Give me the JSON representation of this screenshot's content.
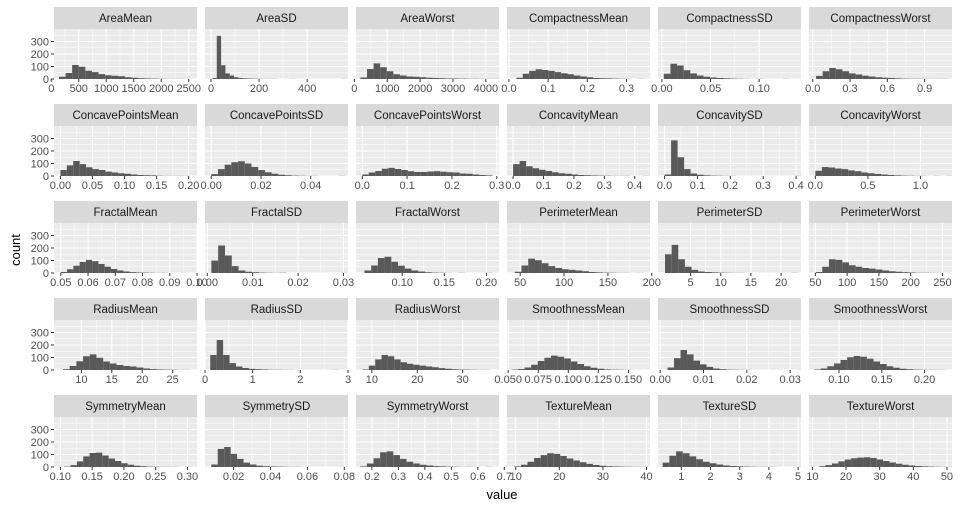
{
  "chart_data": {
    "type": "bar",
    "subtype": "faceted-histogram",
    "facet_columns": 6,
    "grid": true,
    "xlabel": "value",
    "ylabel": "count",
    "ylim": [
      0,
      400
    ],
    "y_ticks": [
      0,
      100,
      200,
      300
    ],
    "colors": {
      "panel_bg": "#ebebeb",
      "strip_bg": "#d9d9d9",
      "bar": "#595959",
      "grid": "#ffffff"
    },
    "panels": [
      {
        "title": "AreaMean",
        "x_ticks": [
          0,
          500,
          1000,
          1500,
          2000,
          2500
        ],
        "xlim": [
          50,
          2650
        ],
        "bin_start": 140,
        "bin_width": 120,
        "counts": [
          18,
          48,
          112,
          98,
          66,
          55,
          39,
          30,
          26,
          22,
          14,
          10,
          6,
          4,
          3,
          2,
          1,
          1,
          1,
          0,
          0,
          0,
          0,
          0,
          0,
          2,
          0,
          0,
          1
        ]
      },
      {
        "title": "AreaSD",
        "x_ticks": [
          0,
          200,
          400
        ],
        "xlim": [
          -25,
          570
        ],
        "bin_start": 6,
        "bin_width": 18,
        "counts": [
          8,
          345,
          110,
          45,
          28,
          14,
          8,
          5,
          4,
          3,
          2,
          1,
          1,
          1,
          1,
          0,
          0,
          0,
          1,
          0,
          0,
          0,
          0,
          0,
          0,
          0,
          0,
          0,
          0,
          0,
          1
        ]
      },
      {
        "title": "AreaWorst",
        "x_ticks": [
          0,
          1000,
          2000,
          3000,
          4000
        ],
        "xlim": [
          50,
          4400
        ],
        "bin_start": 185,
        "bin_width": 200,
        "counts": [
          12,
          80,
          125,
          94,
          62,
          38,
          28,
          20,
          18,
          14,
          10,
          8,
          6,
          4,
          4,
          3,
          2,
          2,
          1,
          1,
          1
        ]
      },
      {
        "title": "CompactnessMean",
        "x_ticks": [
          0.0,
          0.1,
          0.2,
          0.3
        ],
        "xlim": [
          -0.005,
          0.36
        ],
        "bin_start": 0.019,
        "bin_width": 0.0163,
        "counts": [
          10,
          42,
          65,
          78,
          72,
          65,
          55,
          46,
          38,
          28,
          20,
          14,
          8,
          6,
          5,
          3,
          2,
          1,
          0,
          1
        ]
      },
      {
        "title": "CompactnessSD",
        "x_ticks": [
          0.0,
          0.05,
          0.1
        ],
        "xlim": [
          -0.004,
          0.143
        ],
        "bin_start": 0.002,
        "bin_width": 0.0068,
        "counts": [
          42,
          122,
          108,
          70,
          45,
          28,
          18,
          12,
          8,
          5,
          3,
          2,
          1,
          0,
          1,
          0,
          0,
          0,
          1
        ]
      },
      {
        "title": "CompactnessWorst",
        "x_ticks": [
          0.0,
          0.3,
          0.6,
          0.9
        ],
        "xlim": [
          -0.03,
          1.12
        ],
        "bin_start": 0.027,
        "bin_width": 0.053,
        "counts": [
          25,
          62,
          88,
          78,
          62,
          45,
          36,
          26,
          20,
          14,
          10,
          8,
          5,
          3,
          2,
          2,
          1,
          1,
          1,
          1
        ]
      },
      {
        "title": "ConcavePointsMean",
        "x_ticks": [
          0.0,
          0.05,
          0.1,
          0.15,
          0.2
        ],
        "xlim": [
          -0.01,
          0.213
        ],
        "bin_start": 0.0,
        "bin_width": 0.01,
        "counts": [
          48,
          85,
          120,
          95,
          70,
          55,
          48,
          35,
          28,
          22,
          18,
          12,
          8,
          6,
          5,
          2,
          1,
          1,
          1,
          1
        ]
      },
      {
        "title": "ConcavePointsSD",
        "x_ticks": [
          0.0,
          0.02,
          0.04
        ],
        "xlim": [
          -0.0025,
          0.055
        ],
        "bin_start": 0.0,
        "bin_width": 0.0027,
        "counts": [
          15,
          55,
          90,
          110,
          118,
          100,
          72,
          48,
          30,
          18,
          10,
          6,
          3,
          2,
          1,
          1,
          0,
          0,
          0,
          1
        ]
      },
      {
        "title": "ConcavePointsWorst",
        "x_ticks": [
          0.0,
          0.1,
          0.2,
          0.3
        ],
        "xlim": [
          -0.014,
          0.305
        ],
        "bin_start": 0.0,
        "bin_width": 0.0145,
        "counts": [
          12,
          28,
          40,
          58,
          65,
          56,
          48,
          38,
          32,
          32,
          36,
          38,
          34,
          30,
          28,
          20,
          18,
          12,
          8,
          5
        ]
      },
      {
        "title": "ConcavityMean",
        "x_ticks": [
          0.0,
          0.1,
          0.2,
          0.3,
          0.4
        ],
        "xlim": [
          -0.02,
          0.45
        ],
        "bin_start": 0.0,
        "bin_width": 0.0214,
        "counts": [
          95,
          120,
          78,
          62,
          50,
          40,
          30,
          22,
          18,
          12,
          8,
          6,
          4,
          3,
          2,
          1,
          1,
          1,
          0,
          0,
          1
        ]
      },
      {
        "title": "ConcavitySD",
        "x_ticks": [
          0.0,
          0.1,
          0.2,
          0.3,
          0.4
        ],
        "xlim": [
          -0.02,
          0.415
        ],
        "bin_start": 0.0,
        "bin_width": 0.0198,
        "counts": [
          12,
          285,
          150,
          55,
          20,
          10,
          5,
          3,
          2,
          1,
          1,
          0,
          0,
          0,
          0,
          0,
          0,
          0,
          0,
          0,
          1
        ]
      },
      {
        "title": "ConcavityWorst",
        "x_ticks": [
          0.0,
          0.5,
          1.0
        ],
        "xlim": [
          -0.06,
          1.3
        ],
        "bin_start": 0.0,
        "bin_width": 0.0626,
        "counts": [
          42,
          72,
          68,
          60,
          55,
          45,
          38,
          28,
          22,
          16,
          12,
          8,
          5,
          3,
          2,
          1,
          1,
          0,
          1,
          0,
          1
        ]
      },
      {
        "title": "FractalMean",
        "x_ticks": [
          0.05,
          0.06,
          0.07,
          0.08,
          0.09,
          0.1
        ],
        "xlim": [
          0.0475,
          0.1
        ],
        "bin_start": 0.05,
        "bin_width": 0.0023,
        "counts": [
          8,
          30,
          58,
          88,
          105,
          95,
          72,
          50,
          32,
          20,
          12,
          7,
          4,
          3,
          2,
          1,
          1,
          0,
          0,
          1
        ]
      },
      {
        "title": "FractalSD",
        "x_ticks": [
          0.0,
          0.01,
          0.02,
          0.03
        ],
        "xlim": [
          -0.0005,
          0.031
        ],
        "bin_start": 0.0009,
        "bin_width": 0.0015,
        "counts": [
          100,
          220,
          140,
          55,
          20,
          10,
          6,
          3,
          2,
          1,
          2,
          0,
          0,
          0,
          0,
          0,
          0,
          0,
          0,
          1
        ]
      },
      {
        "title": "FractalWorst",
        "x_ticks": [
          0.1,
          0.15,
          0.2
        ],
        "xlim": [
          0.045,
          0.215
        ],
        "bin_start": 0.055,
        "bin_width": 0.008,
        "counts": [
          20,
          60,
          120,
          130,
          90,
          58,
          35,
          20,
          12,
          6,
          3,
          2,
          1,
          0,
          1,
          0,
          0,
          0,
          1
        ]
      },
      {
        "title": "PerimeterMean",
        "x_ticks": [
          50,
          100,
          150,
          200
        ],
        "xlim": [
          35,
          198
        ],
        "bin_start": 43.8,
        "bin_width": 7.7,
        "counts": [
          10,
          60,
          115,
          102,
          78,
          55,
          40,
          30,
          25,
          20,
          14,
          8,
          5,
          3,
          2,
          1,
          1,
          0,
          1
        ]
      },
      {
        "title": "PerimeterSD",
        "x_ticks": [
          5,
          10,
          15,
          20
        ],
        "xlim": [
          -0.4,
          23.3
        ],
        "bin_start": 0.76,
        "bin_width": 1.1,
        "counts": [
          150,
          225,
          110,
          50,
          25,
          12,
          8,
          5,
          3,
          2,
          1,
          1,
          0,
          0,
          0,
          0,
          0,
          0,
          0,
          1
        ]
      },
      {
        "title": "PerimeterWorst",
        "x_ticks": [
          50,
          100,
          150,
          200,
          250
        ],
        "xlim": [
          40,
          265
        ],
        "bin_start": 50.4,
        "bin_width": 10.5,
        "counts": [
          8,
          50,
          110,
          105,
          85,
          62,
          50,
          40,
          35,
          28,
          20,
          14,
          10,
          6,
          4,
          2,
          2,
          1,
          1
        ]
      },
      {
        "title": "RadiusMean",
        "x_ticks": [
          10,
          15,
          20,
          25
        ],
        "xlim": [
          5.5,
          29
        ],
        "bin_start": 6.98,
        "bin_width": 1.1,
        "counts": [
          6,
          32,
          70,
          110,
          125,
          98,
          68,
          52,
          40,
          32,
          28,
          20,
          12,
          7,
          4,
          3,
          2,
          1,
          1
        ]
      },
      {
        "title": "RadiusSD",
        "x_ticks": [
          0,
          1,
          2,
          3
        ],
        "xlim": [
          0.0,
          3.0
        ],
        "bin_start": 0.11,
        "bin_width": 0.135,
        "counts": [
          120,
          240,
          120,
          55,
          28,
          16,
          9,
          6,
          4,
          2,
          2,
          1,
          1,
          0,
          0,
          0,
          0,
          0,
          0,
          1
        ]
      },
      {
        "title": "RadiusWorst",
        "x_ticks": [
          10,
          20,
          30
        ],
        "xlim": [
          6.5,
          38
        ],
        "bin_start": 7.93,
        "bin_width": 1.4,
        "counts": [
          4,
          35,
          85,
          120,
          110,
          85,
          62,
          50,
          42,
          35,
          28,
          22,
          15,
          10,
          6,
          4,
          3,
          2,
          1,
          1
        ]
      },
      {
        "title": "SmoothnessMean",
        "x_ticks": [
          0.05,
          0.075,
          0.1,
          0.125,
          0.15
        ],
        "xlim": [
          0.049,
          0.168
        ],
        "bin_start": 0.0526,
        "bin_width": 0.0055,
        "counts": [
          3,
          8,
          20,
          42,
          72,
          98,
          115,
          106,
          92,
          68,
          48,
          30,
          18,
          10,
          5,
          3,
          2,
          1
        ]
      },
      {
        "title": "SmoothnessSD",
        "x_ticks": [
          0.0,
          0.01,
          0.02,
          0.03
        ],
        "xlim": [
          -0.0005,
          0.0325
        ],
        "bin_start": 0.0017,
        "bin_width": 0.0015,
        "counts": [
          20,
          95,
          160,
          125,
          75,
          45,
          25,
          12,
          6,
          3,
          2,
          1,
          1,
          0,
          0,
          0,
          0,
          0,
          0,
          0,
          1
        ]
      },
      {
        "title": "SmoothnessWorst",
        "x_ticks": [
          0.1,
          0.15,
          0.2
        ],
        "xlim": [
          0.065,
          0.232
        ],
        "bin_start": 0.071,
        "bin_width": 0.0077,
        "counts": [
          4,
          12,
          30,
          52,
          80,
          102,
          112,
          106,
          90,
          68,
          48,
          30,
          18,
          10,
          6,
          3,
          2,
          1,
          1,
          1
        ]
      },
      {
        "title": "SymmetryMean",
        "x_ticks": [
          0.1,
          0.15,
          0.2,
          0.25,
          0.3
        ],
        "xlim": [
          0.09,
          0.315
        ],
        "bin_start": 0.106,
        "bin_width": 0.01,
        "counts": [
          3,
          15,
          45,
          85,
          112,
          115,
          92,
          68,
          48,
          30,
          18,
          10,
          6,
          3,
          2,
          1,
          1,
          1,
          0,
          1
        ]
      },
      {
        "title": "SymmetrySD",
        "x_ticks": [
          0.02,
          0.04,
          0.06,
          0.08
        ],
        "xlim": [
          0.0045,
          0.082
        ],
        "bin_start": 0.0079,
        "bin_width": 0.0035,
        "counts": [
          20,
          145,
          160,
          105,
          65,
          35,
          20,
          10,
          6,
          4,
          3,
          2,
          1,
          1,
          0,
          0,
          0,
          0,
          0,
          0,
          1
        ]
      },
      {
        "title": "SymmetryWorst",
        "x_ticks": [
          0.2,
          0.3,
          0.4,
          0.5,
          0.6,
          0.7
        ],
        "xlim": [
          0.14,
          0.68
        ],
        "bin_start": 0.156,
        "bin_width": 0.025,
        "counts": [
          5,
          28,
          70,
          118,
          125,
          95,
          65,
          42,
          28,
          18,
          12,
          7,
          5,
          3,
          2,
          1,
          1,
          0,
          0,
          1
        ]
      },
      {
        "title": "TextureMean",
        "x_ticks": [
          10,
          20,
          30,
          40
        ],
        "xlim": [
          8.0,
          40.8
        ],
        "bin_start": 9.71,
        "bin_width": 1.5,
        "counts": [
          5,
          18,
          42,
          72,
          95,
          110,
          105,
          88,
          68,
          52,
          38,
          25,
          16,
          10,
          6,
          4,
          3,
          2,
          1,
          1
        ]
      },
      {
        "title": "TextureSD",
        "x_ticks": [
          1,
          2,
          3,
          4,
          5
        ],
        "xlim": [
          0.2,
          5.1
        ],
        "bin_start": 0.36,
        "bin_width": 0.23,
        "counts": [
          35,
          90,
          125,
          110,
          85,
          62,
          42,
          30,
          20,
          12,
          8,
          5,
          3,
          2,
          1,
          1,
          1,
          0,
          0,
          0,
          1
        ]
      },
      {
        "title": "TextureWorst",
        "x_ticks": [
          10,
          20,
          30,
          40,
          50
        ],
        "xlim": [
          9.0,
          51.5
        ],
        "bin_start": 12.02,
        "bin_width": 1.9,
        "counts": [
          6,
          15,
          28,
          45,
          60,
          70,
          75,
          78,
          72,
          60,
          48,
          36,
          26,
          18,
          12,
          8,
          5,
          3,
          2,
          1,
          1
        ]
      }
    ]
  }
}
